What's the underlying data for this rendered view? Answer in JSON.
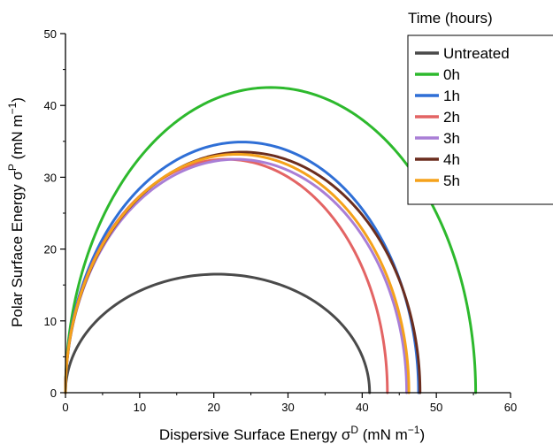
{
  "chart_data": {
    "type": "line",
    "xlabel": "Dispersive Surface Energy σ",
    "xlabel_sup": "D",
    "xlabel_unit_open": " (mN m",
    "xlabel_unit_sup": "−1",
    "xlabel_unit_close": ")",
    "ylabel": "Polar Surface Energy σ",
    "ylabel_sup": "P",
    "ylabel_unit_open": " (mN m",
    "ylabel_unit_sup": "−1",
    "ylabel_unit_close": ")",
    "xlim": [
      0,
      60
    ],
    "ylim": [
      0,
      50
    ],
    "xticks": [
      "0",
      "10",
      "20",
      "30",
      "40",
      "50",
      "60"
    ],
    "yticks": [
      "0",
      "10",
      "20",
      "30",
      "40",
      "50"
    ],
    "grid": false,
    "legend_title": "Time (hours)",
    "legend_placement": "top-right",
    "series": [
      {
        "name": "Untreated",
        "color": "#4a4a4a",
        "x_max": 41.0,
        "y_max": 16.5
      },
      {
        "name": "0h",
        "color": "#2db92d",
        "x_max": 55.3,
        "y_max": 42.5
      },
      {
        "name": "1h",
        "color": "#2f6fd6",
        "x_max": 47.6,
        "y_max": 34.9
      },
      {
        "name": "2h",
        "color": "#e36464",
        "x_max": 43.4,
        "y_max": 32.5
      },
      {
        "name": "3h",
        "color": "#a97ed6",
        "x_max": 46.0,
        "y_max": 32.5
      },
      {
        "name": "4h",
        "color": "#6b2d1e",
        "x_max": 47.8,
        "y_max": 33.5
      },
      {
        "name": "5h",
        "color": "#f5a21b",
        "x_max": 46.3,
        "y_max": 33.2
      }
    ]
  }
}
